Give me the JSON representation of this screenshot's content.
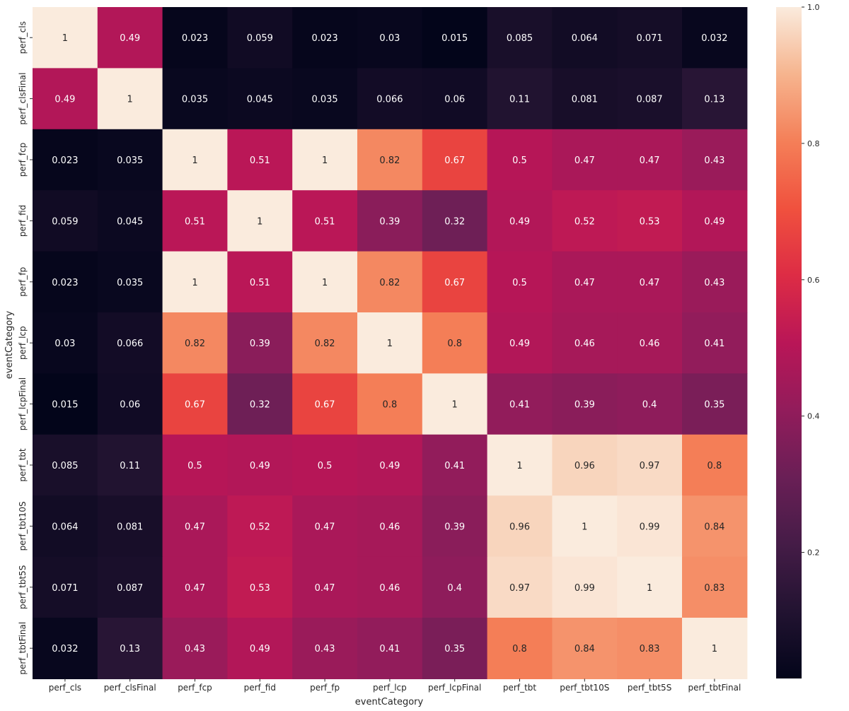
{
  "chart_data": {
    "type": "heatmap",
    "title": "",
    "xlabel": "eventCategory",
    "ylabel": "eventCategory",
    "x_categories": [
      "perf_cls",
      "perf_clsFinal",
      "perf_fcp",
      "perf_fid",
      "perf_fp",
      "perf_lcp",
      "perf_lcpFinal",
      "perf_tbt",
      "perf_tbt10S",
      "perf_tbt5S",
      "perf_tbtFinal"
    ],
    "y_categories": [
      "perf_cls",
      "perf_clsFinal",
      "perf_fcp",
      "perf_fid",
      "perf_fp",
      "perf_lcp",
      "perf_lcpFinal",
      "perf_tbt",
      "perf_tbt10S",
      "perf_tbt5S",
      "perf_tbtFinal"
    ],
    "values": [
      [
        1,
        0.49,
        0.023,
        0.059,
        0.023,
        0.03,
        0.015,
        0.085,
        0.064,
        0.071,
        0.032
      ],
      [
        0.49,
        1,
        0.035,
        0.045,
        0.035,
        0.066,
        0.06,
        0.11,
        0.081,
        0.087,
        0.13
      ],
      [
        0.023,
        0.035,
        1,
        0.51,
        1,
        0.82,
        0.67,
        0.5,
        0.47,
        0.47,
        0.43
      ],
      [
        0.059,
        0.045,
        0.51,
        1,
        0.51,
        0.39,
        0.32,
        0.49,
        0.52,
        0.53,
        0.49
      ],
      [
        0.023,
        0.035,
        1,
        0.51,
        1,
        0.82,
        0.67,
        0.5,
        0.47,
        0.47,
        0.43
      ],
      [
        0.03,
        0.066,
        0.82,
        0.39,
        0.82,
        1,
        0.8,
        0.49,
        0.46,
        0.46,
        0.41
      ],
      [
        0.015,
        0.06,
        0.67,
        0.32,
        0.67,
        0.8,
        1,
        0.41,
        0.39,
        0.4,
        0.35
      ],
      [
        0.085,
        0.11,
        0.5,
        0.49,
        0.5,
        0.49,
        0.41,
        1,
        0.96,
        0.97,
        0.8
      ],
      [
        0.064,
        0.081,
        0.47,
        0.52,
        0.47,
        0.46,
        0.39,
        0.96,
        1,
        0.99,
        0.84
      ],
      [
        0.071,
        0.087,
        0.47,
        0.53,
        0.47,
        0.46,
        0.4,
        0.97,
        0.99,
        1,
        0.83
      ],
      [
        0.032,
        0.13,
        0.43,
        0.49,
        0.43,
        0.41,
        0.35,
        0.8,
        0.84,
        0.83,
        1
      ]
    ],
    "cell_labels": [
      [
        "1",
        "0.49",
        "0.023",
        "0.059",
        "0.023",
        "0.03",
        "0.015",
        "0.085",
        "0.064",
        "0.071",
        "0.032"
      ],
      [
        "0.49",
        "1",
        "0.035",
        "0.045",
        "0.035",
        "0.066",
        "0.06",
        "0.11",
        "0.081",
        "0.087",
        "0.13"
      ],
      [
        "0.023",
        "0.035",
        "1",
        "0.51",
        "1",
        "0.82",
        "0.67",
        "0.5",
        "0.47",
        "0.47",
        "0.43"
      ],
      [
        "0.059",
        "0.045",
        "0.51",
        "1",
        "0.51",
        "0.39",
        "0.32",
        "0.49",
        "0.52",
        "0.53",
        "0.49"
      ],
      [
        "0.023",
        "0.035",
        "1",
        "0.51",
        "1",
        "0.82",
        "0.67",
        "0.5",
        "0.47",
        "0.47",
        "0.43"
      ],
      [
        "0.03",
        "0.066",
        "0.82",
        "0.39",
        "0.82",
        "1",
        "0.8",
        "0.49",
        "0.46",
        "0.46",
        "0.41"
      ],
      [
        "0.015",
        "0.06",
        "0.67",
        "0.32",
        "0.67",
        "0.8",
        "1",
        "0.41",
        "0.39",
        "0.4",
        "0.35"
      ],
      [
        "0.085",
        "0.11",
        "0.5",
        "0.49",
        "0.5",
        "0.49",
        "0.41",
        "1",
        "0.96",
        "0.97",
        "0.8"
      ],
      [
        "0.064",
        "0.081",
        "0.47",
        "0.52",
        "0.47",
        "0.46",
        "0.39",
        "0.96",
        "1",
        "0.99",
        "0.84"
      ],
      [
        "0.071",
        "0.087",
        "0.47",
        "0.53",
        "0.47",
        "0.46",
        "0.4",
        "0.97",
        "0.99",
        "1",
        "0.83"
      ],
      [
        "0.032",
        "0.13",
        "0.43",
        "0.49",
        "0.43",
        "0.41",
        "0.35",
        "0.8",
        "0.84",
        "0.83",
        "1"
      ]
    ],
    "colorbar": {
      "colormap": "rocket",
      "vmin": 0.015,
      "vmax": 1.0,
      "ticks": [
        0.2,
        0.4,
        0.6,
        0.8,
        1.0
      ],
      "tick_labels": [
        "0.2",
        "0.4",
        "0.6",
        "0.8",
        "1.0"
      ]
    },
    "colormap_stops": [
      [
        0.0,
        "#03051a"
      ],
      [
        0.1,
        "#221331"
      ],
      [
        0.2,
        "#451c47"
      ],
      [
        0.3,
        "#6a1f56"
      ],
      [
        0.4,
        "#921c5b"
      ],
      [
        0.5,
        "#b91657"
      ],
      [
        0.6,
        "#dd2c45"
      ],
      [
        0.7,
        "#f0513e"
      ],
      [
        0.8,
        "#f47f58"
      ],
      [
        0.9,
        "#f6b48e"
      ],
      [
        1.0,
        "#faebdd"
      ]
    ],
    "grid": false,
    "legend": "colorbar-right"
  }
}
